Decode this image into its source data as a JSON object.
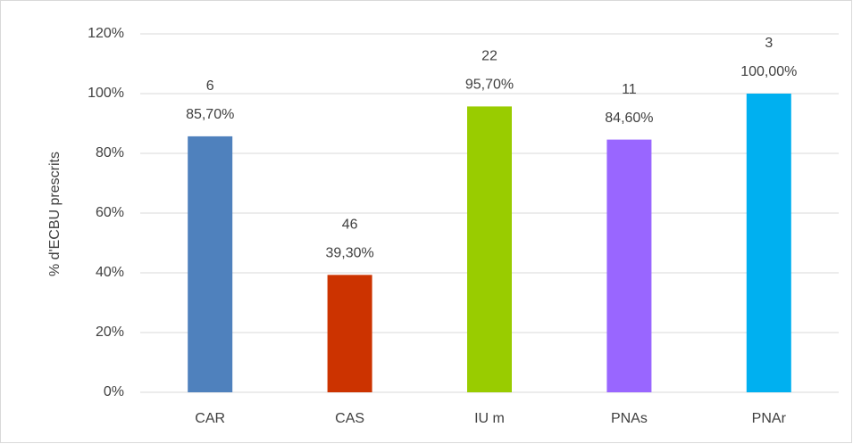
{
  "chart_data": {
    "type": "bar",
    "y_axis_label": "% d'ECBU prescrits",
    "categories": [
      "CAR",
      "CAS",
      "IU m",
      "PNAs",
      "PNAr"
    ],
    "values": [
      85.7,
      39.3,
      95.7,
      84.6,
      100
    ],
    "value_labels": [
      "85,70%",
      "39,30%",
      "95,70%",
      "84,60%",
      "100,00%"
    ],
    "counts": [
      6,
      46,
      22,
      11,
      3
    ],
    "colors": [
      "#4f81bd",
      "#cc3300",
      "#99cc00",
      "#9966ff",
      "#00b0f0"
    ],
    "ylim": [
      0,
      120
    ],
    "yticks": [
      {
        "value": 0,
        "label": "0%"
      },
      {
        "value": 20,
        "label": "20%"
      },
      {
        "value": 40,
        "label": "40%"
      },
      {
        "value": 60,
        "label": "60%"
      },
      {
        "value": 80,
        "label": "80%"
      },
      {
        "value": 100,
        "label": "100%"
      },
      {
        "value": 120,
        "label": "120%"
      }
    ],
    "grid": true
  }
}
